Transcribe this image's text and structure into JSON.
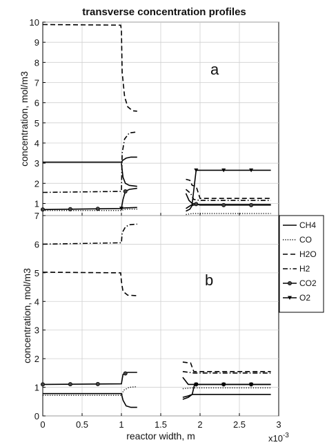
{
  "title": "transverse concentration  profiles",
  "xlabel": "reactor width, m",
  "x_multiplier": "x10",
  "x_multiplier_exp": "-3",
  "ylabel_a": "concentration, mol/m3",
  "ylabel_b": "concentration, mol/m3",
  "panel_a": "a",
  "panel_b": "b",
  "xticks": [
    "0",
    "0.5",
    "1",
    "1.5",
    "2",
    "2.5",
    "3"
  ],
  "yticks_a": [
    "1",
    "2",
    "3",
    "4",
    "5",
    "6",
    "7",
    "8",
    "9",
    "10"
  ],
  "yticks_b": [
    "0",
    "1",
    "2",
    "3",
    "4",
    "5",
    "6",
    "7"
  ],
  "legend": [
    "CH4",
    "CO",
    "H2O",
    "H2",
    "CO2",
    "O2"
  ],
  "chart_data": {
    "type": "line",
    "xlim": [
      0,
      3.0
    ],
    "x_scale_note": "x10^-3",
    "panels": [
      {
        "label": "a",
        "ylim": [
          0.4,
          10.0
        ],
        "series": [
          {
            "name": "CH4",
            "style": "solid",
            "marker": "none",
            "seg1": [
              [
                0,
                3.05
              ],
              [
                1.0,
                3.05
              ],
              [
                1.02,
                3.15
              ],
              [
                1.06,
                3.25
              ],
              [
                1.12,
                3.3
              ],
              [
                1.2,
                3.3
              ]
            ],
            "seg1b": [
              [
                1.0,
                3.0
              ],
              [
                1.02,
                2.3
              ],
              [
                1.05,
                2.0
              ],
              [
                1.1,
                1.9
              ],
              [
                1.2,
                1.85
              ]
            ],
            "seg2": [
              [
                1.82,
                0.62
              ],
              [
                1.87,
                0.72
              ],
              [
                1.9,
                0.9
              ],
              [
                1.95,
                0.95
              ],
              [
                2.9,
                0.95
              ]
            ]
          },
          {
            "name": "CO",
            "style": "dotted",
            "marker": "none",
            "seg1": [
              [
                0,
                0.65
              ],
              [
                1.0,
                0.65
              ],
              [
                1.03,
                0.7
              ],
              [
                1.1,
                0.72
              ],
              [
                1.2,
                0.72
              ]
            ],
            "seg2": [
              [
                1.82,
                0.45
              ],
              [
                1.9,
                0.5
              ],
              [
                2.9,
                0.5
              ]
            ]
          },
          {
            "name": "H2O",
            "style": "dashed",
            "marker": "none",
            "seg1": [
              [
                0,
                9.88
              ],
              [
                0.99,
                9.85
              ],
              [
                1.0,
                9.6
              ],
              [
                1.01,
                7.5
              ],
              [
                1.04,
                6.3
              ],
              [
                1.08,
                5.8
              ],
              [
                1.14,
                5.6
              ],
              [
                1.2,
                5.58
              ]
            ],
            "seg2": [
              [
                1.82,
                2.2
              ],
              [
                1.87,
                2.15
              ],
              [
                1.9,
                1.9
              ],
              [
                1.95,
                1.85
              ],
              [
                2.0,
                1.25
              ],
              [
                2.9,
                1.25
              ]
            ]
          },
          {
            "name": "H2",
            "style": "dashdot",
            "marker": "none",
            "seg1": [
              [
                0,
                1.55
              ],
              [
                1.0,
                1.6
              ],
              [
                1.01,
                3.5
              ],
              [
                1.04,
                4.2
              ],
              [
                1.1,
                4.5
              ],
              [
                1.2,
                4.55
              ]
            ],
            "seg2": [
              [
                1.82,
                1.7
              ],
              [
                1.88,
                1.5
              ],
              [
                1.92,
                1.2
              ],
              [
                2.0,
                1.15
              ],
              [
                2.9,
                1.15
              ]
            ]
          },
          {
            "name": "CO2",
            "style": "solid",
            "marker": "circle",
            "seg1": [
              [
                0,
                0.7
              ],
              [
                1.0,
                0.75
              ],
              [
                1.02,
                1.2
              ],
              [
                1.05,
                1.6
              ],
              [
                1.1,
                1.7
              ],
              [
                1.2,
                1.75
              ]
            ],
            "seg2": [
              [
                1.82,
                0.75
              ],
              [
                1.88,
                0.9
              ],
              [
                1.92,
                1.0
              ],
              [
                2.0,
                0.92
              ],
              [
                2.9,
                0.92
              ]
            ]
          },
          {
            "name": "O2",
            "style": "solid",
            "marker": "triangle-down",
            "seg1": [
              [
                1.0,
                0.75
              ],
              [
                1.04,
                0.78
              ],
              [
                1.2,
                0.8
              ]
            ],
            "seg2": [
              [
                1.82,
                1.5
              ],
              [
                1.86,
                1.15
              ],
              [
                1.9,
                1.0
              ],
              [
                1.95,
                2.65
              ],
              [
                2.9,
                2.65
              ]
            ]
          }
        ]
      },
      {
        "label": "b",
        "ylim": [
          0,
          7.0
        ],
        "series": [
          {
            "name": "CH4",
            "style": "solid",
            "marker": "none",
            "seg1": [
              [
                0,
                0.78
              ],
              [
                1.0,
                0.78
              ],
              [
                1.02,
                0.55
              ],
              [
                1.06,
                0.35
              ],
              [
                1.12,
                0.3
              ],
              [
                1.2,
                0.3
              ]
            ],
            "seg2": [
              [
                1.78,
                0.65
              ],
              [
                1.85,
                0.7
              ],
              [
                1.9,
                0.75
              ],
              [
                2.9,
                0.75
              ]
            ]
          },
          {
            "name": "CO",
            "style": "dotted",
            "marker": "none",
            "seg1": [
              [
                0,
                0.72
              ],
              [
                1.0,
                0.72
              ],
              [
                1.03,
                0.9
              ],
              [
                1.1,
                1.0
              ],
              [
                1.2,
                1.02
              ]
            ],
            "seg2": [
              [
                1.78,
                0.95
              ],
              [
                1.9,
                0.98
              ],
              [
                2.9,
                0.98
              ]
            ]
          },
          {
            "name": "H2O",
            "style": "dashed",
            "marker": "none",
            "seg1": [
              [
                0,
                5.02
              ],
              [
                0.99,
                5.0
              ],
              [
                1.0,
                4.7
              ],
              [
                1.02,
                4.35
              ],
              [
                1.08,
                4.22
              ],
              [
                1.2,
                4.2
              ]
            ],
            "seg2": [
              [
                1.78,
                1.88
              ],
              [
                1.88,
                1.85
              ],
              [
                1.92,
                1.55
              ],
              [
                2.9,
                1.55
              ]
            ]
          },
          {
            "name": "H2",
            "style": "dashdot",
            "marker": "none",
            "seg1": [
              [
                0,
                6.0
              ],
              [
                1.0,
                6.05
              ],
              [
                1.01,
                6.4
              ],
              [
                1.05,
                6.6
              ],
              [
                1.1,
                6.68
              ],
              [
                1.2,
                6.7
              ]
            ],
            "seg2": [
              [
                1.78,
                1.55
              ],
              [
                1.86,
                1.52
              ],
              [
                1.92,
                1.5
              ],
              [
                2.9,
                1.5
              ]
            ]
          },
          {
            "name": "CO2",
            "style": "solid",
            "marker": "circle",
            "seg1": [
              [
                0,
                1.1
              ],
              [
                1.0,
                1.12
              ],
              [
                1.02,
                1.45
              ],
              [
                1.08,
                1.52
              ],
              [
                1.2,
                1.52
              ]
            ],
            "seg2": [
              [
                1.78,
                1.35
              ],
              [
                1.85,
                1.1
              ],
              [
                1.92,
                1.1
              ],
              [
                2.9,
                1.1
              ]
            ]
          },
          {
            "name": "O2",
            "style": "solid",
            "marker": "triangle-down",
            "seg1": [],
            "seg2": [
              [
                1.78,
                0.58
              ],
              [
                1.85,
                0.65
              ],
              [
                1.9,
                0.75
              ],
              [
                1.93,
                1.1
              ],
              [
                2.9,
                1.1
              ]
            ]
          }
        ]
      }
    ]
  }
}
